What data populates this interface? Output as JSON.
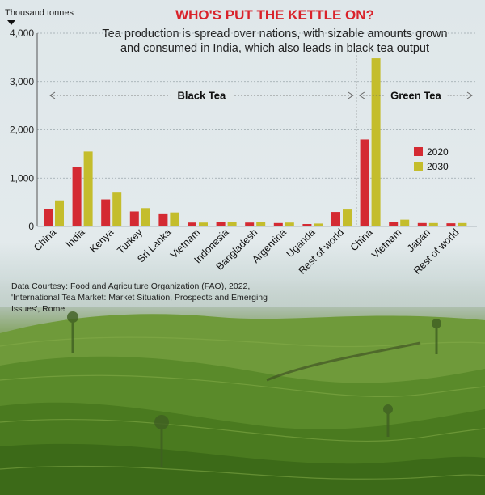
{
  "header": {
    "title": "WHO'S PUT THE KETTLE ON?",
    "subtitle_lines": [
      "Tea production is spread over nations, with sizable amounts grown",
      "and consumed in India, which also leads in black tea output"
    ]
  },
  "source": "Data Courtesy: Food and Agriculture Organization (FAO), 2022, 'International Tea Market: Market Situation, Prospects and Emerging Issues', Rome",
  "colors": {
    "series_2020": "#d42a32",
    "series_2030": "#c4bd2c",
    "title": "#d9232b"
  },
  "chart_data": {
    "type": "bar",
    "ylabel": "Thousand tonnes",
    "ylim": [
      0,
      4000
    ],
    "yticks": [
      "4,000",
      "3,000",
      "2,000",
      "1,000",
      "0"
    ],
    "grid": true,
    "legend_position": "right, inside green tea panel",
    "groups": [
      {
        "label": "Black Tea",
        "categories": [
          "China",
          "India",
          "Kenya",
          "Turkey",
          "Sri Lanka",
          "Vietnam",
          "Indonesia",
          "Bangladesh",
          "Argentina",
          "Uganda",
          "Rest of world"
        ]
      },
      {
        "label": "Green Tea",
        "categories": [
          "China",
          "Vietnam",
          "Japan",
          "Rest of world"
        ]
      }
    ],
    "categories": [
      "China",
      "India",
      "Kenya",
      "Turkey",
      "Sri Lanka",
      "Vietnam",
      "Indonesia",
      "Bangladesh",
      "Argentina",
      "Uganda",
      "Rest of world",
      "China",
      "Vietnam",
      "Japan",
      "Rest of world"
    ],
    "series": [
      {
        "name": "2020",
        "values": [
          360,
          1230,
          560,
          310,
          270,
          80,
          90,
          80,
          70,
          50,
          300,
          1800,
          90,
          70,
          65
        ]
      },
      {
        "name": "2030",
        "values": [
          540,
          1550,
          700,
          380,
          290,
          80,
          90,
          100,
          80,
          60,
          350,
          3480,
          140,
          70,
          70
        ]
      }
    ]
  }
}
